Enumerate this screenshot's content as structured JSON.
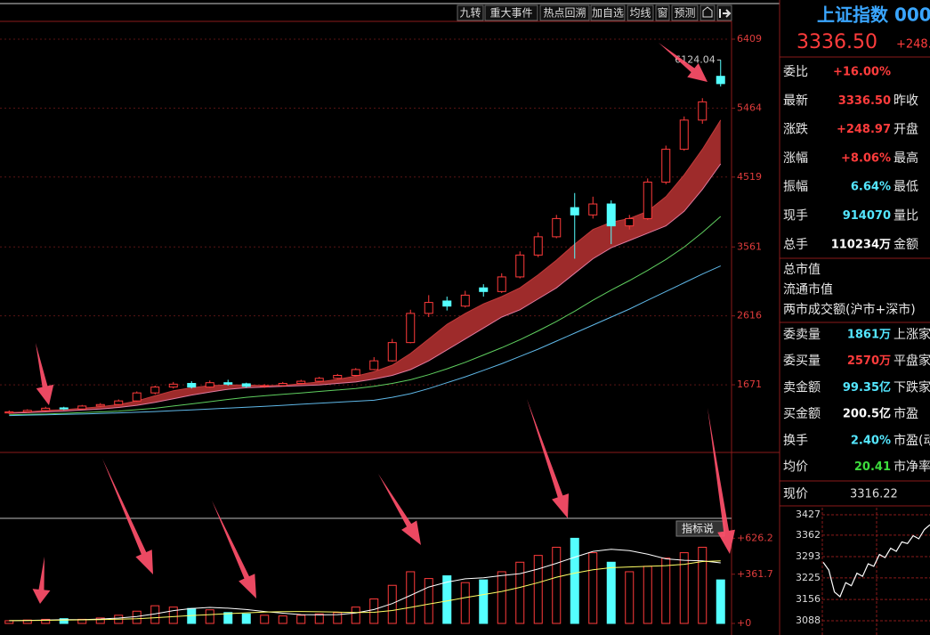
{
  "toolbar": [
    "九转",
    "重大事件",
    "热点回溯",
    "加自选",
    "均线",
    "窗",
    "预测"
  ],
  "chart_data": [
    {
      "type": "candlestick",
      "open": [
        1285,
        1300,
        1320,
        1355,
        1340,
        1380,
        1400,
        1450,
        1560,
        1640,
        1690,
        1640,
        1700,
        1685,
        1650,
        1660,
        1690,
        1720,
        1760,
        1800,
        1880,
        2000,
        2250,
        2650,
        2820,
        2750,
        3000,
        2950,
        3150,
        3450,
        3700,
        4100,
        4000,
        4150,
        3850,
        3950,
        4450,
        4900,
        5300,
        5900
      ],
      "high": [
        1320,
        1335,
        1370,
        1370,
        1395,
        1420,
        1470,
        1580,
        1660,
        1710,
        1720,
        1730,
        1740,
        1700,
        1680,
        1710,
        1740,
        1780,
        1820,
        1900,
        2050,
        2300,
        2700,
        2900,
        2880,
        2960,
        3050,
        3200,
        3500,
        3760,
        4000,
        4300,
        4250,
        4200,
        4000,
        4500,
        4950,
        5350,
        5600,
        6124.04
      ],
      "low": [
        1270,
        1290,
        1310,
        1325,
        1330,
        1365,
        1390,
        1440,
        1540,
        1620,
        1620,
        1630,
        1660,
        1630,
        1630,
        1650,
        1680,
        1710,
        1750,
        1790,
        1870,
        1990,
        2240,
        2600,
        2690,
        2730,
        2880,
        2930,
        3130,
        3420,
        3680,
        3400,
        3950,
        3600,
        3800,
        3930,
        4420,
        4880,
        5250,
        5760
      ],
      "close": [
        1300,
        1320,
        1350,
        1340,
        1380,
        1400,
        1450,
        1560,
        1640,
        1680,
        1640,
        1700,
        1680,
        1650,
        1660,
        1690,
        1720,
        1760,
        1800,
        1880,
        2000,
        2250,
        2650,
        2800,
        2750,
        2900,
        2950,
        3150,
        3450,
        3700,
        3950,
        4000,
        4150,
        3850,
        3950,
        4450,
        4900,
        5300,
        5550,
        5800
      ],
      "up_color": "#ff3b3b",
      "down_color": "#54ffff",
      "lines": [
        {
          "color": "#c23a3a",
          "values": [
            1290,
            1300,
            1320,
            1330,
            1350,
            1370,
            1400,
            1450,
            1520,
            1590,
            1630,
            1660,
            1670,
            1670,
            1660,
            1665,
            1685,
            1710,
            1745,
            1790,
            1850,
            1940,
            2100,
            2300,
            2500,
            2650,
            2780,
            2880,
            3000,
            3180,
            3380,
            3600,
            3800,
            3900,
            3950,
            4050,
            4250,
            4550,
            4900,
            5300
          ]
        },
        {
          "color": "#e07aa0",
          "values": [
            1280,
            1290,
            1300,
            1310,
            1325,
            1340,
            1360,
            1390,
            1430,
            1480,
            1530,
            1570,
            1610,
            1630,
            1640,
            1650,
            1660,
            1670,
            1690,
            1710,
            1750,
            1800,
            1880,
            2000,
            2150,
            2300,
            2450,
            2600,
            2700,
            2850,
            3000,
            3200,
            3400,
            3550,
            3650,
            3750,
            3850,
            4050,
            4350,
            4700
          ]
        },
        {
          "color": "#5fcf5f",
          "values": [
            1260,
            1265,
            1270,
            1280,
            1290,
            1300,
            1310,
            1330,
            1350,
            1380,
            1410,
            1440,
            1470,
            1500,
            1520,
            1540,
            1560,
            1580,
            1600,
            1620,
            1650,
            1690,
            1740,
            1810,
            1890,
            1980,
            2080,
            2180,
            2290,
            2410,
            2540,
            2680,
            2830,
            2970,
            3100,
            3240,
            3390,
            3560,
            3760,
            3980
          ]
        },
        {
          "color": "#5fb8e8",
          "values": [
            1250,
            1255,
            1260,
            1265,
            1270,
            1278,
            1286,
            1295,
            1305,
            1316,
            1328,
            1340,
            1352,
            1364,
            1376,
            1390,
            1404,
            1418,
            1432,
            1446,
            1460,
            1500,
            1550,
            1620,
            1700,
            1780,
            1870,
            1960,
            2060,
            2160,
            2270,
            2380,
            2490,
            2600,
            2710,
            2830,
            2950,
            3070,
            3190,
            3300
          ]
        }
      ],
      "band_color": "#9e2b2b",
      "ylim": [
        744,
        6641
      ],
      "yticks": [
        1671,
        2616,
        3561,
        4519,
        5464,
        6409
      ],
      "grid": true
    },
    {
      "type": "bar",
      "button": "指标说",
      "values": [
        20,
        25,
        30,
        35,
        30,
        40,
        60,
        90,
        130,
        120,
        110,
        100,
        80,
        70,
        60,
        55,
        60,
        70,
        80,
        120,
        180,
        280,
        380,
        330,
        350,
        300,
        320,
        380,
        450,
        500,
        560,
        626,
        520,
        450,
        380,
        420,
        480,
        520,
        560,
        320
      ],
      "lines": [
        {
          "color": "#ffffff",
          "values": [
            20,
            22,
            25,
            28,
            28,
            32,
            39,
            51,
            70,
            94,
            110,
            118,
            112,
            102,
            88,
            75,
            65,
            63,
            65,
            77,
            102,
            146,
            206,
            268,
            304,
            328,
            336,
            352,
            366,
            400,
            442,
            487,
            530,
            545,
            535,
            509,
            475,
            464,
            460,
            445
          ]
        },
        {
          "color": "#ffff66",
          "values": [
            20,
            21,
            23,
            25,
            26,
            28,
            31,
            35,
            42,
            50,
            58,
            65,
            72,
            78,
            83,
            87,
            88,
            86,
            83,
            80,
            82,
            95,
            118,
            142,
            165,
            190,
            212,
            235,
            265,
            300,
            340,
            370,
            395,
            410,
            415,
            420,
            425,
            435,
            455,
            460
          ]
        }
      ],
      "ylim": [
        0,
        753
      ],
      "yticks": [
        {
          "value": 0,
          "label": "+0"
        },
        {
          "value": 361.7,
          "label": "+361.7"
        },
        {
          "value": 626.2,
          "label": "+626.2"
        }
      ]
    },
    {
      "type": "line",
      "label": "现价",
      "value_text": "3316.22",
      "color": "#ffffff",
      "values": [
        3275,
        3250,
        3180,
        3165,
        3210,
        3200,
        3240,
        3230,
        3270,
        3262,
        3300,
        3290,
        3320,
        3310,
        3340,
        3335,
        3360,
        3350,
        3380,
        3395
      ],
      "ylim": [
        3088,
        3427
      ],
      "yticks": [
        3088,
        3156,
        3225,
        3293,
        3362,
        3427
      ],
      "grid": true
    }
  ],
  "quote": {
    "name": "上证指数 000",
    "price": "3336.50",
    "change": "+248.",
    "rows": [
      {
        "label": "委比",
        "value": "+16.00%",
        "color": "#ff3c3c"
      },
      {
        "label": "最新",
        "value": "3336.50",
        "color": "#ff3c3c",
        "right": "昨收"
      },
      {
        "label": "涨跌",
        "value": "+248.97",
        "color": "#ff3c3c",
        "right": "开盘"
      },
      {
        "label": "涨幅",
        "value": "+8.06%",
        "color": "#ff3c3c",
        "right": "最高"
      },
      {
        "label": "振幅",
        "value": "6.64%",
        "color": "#54e6ff",
        "right": "最低"
      },
      {
        "label": "现手",
        "value": "914070",
        "color": "#54e6ff",
        "right": "量比"
      },
      {
        "label": "总手",
        "value": "110234万",
        "color": "#ffffff",
        "right": "金额"
      }
    ],
    "info": [
      "总市值",
      "流通市值",
      "两市成交额(沪市+深市)"
    ],
    "rows2": [
      {
        "label": "委卖量",
        "value": "1861万",
        "color": "#54e6ff",
        "right": "上涨家"
      },
      {
        "label": "委买量",
        "value": "2570万",
        "color": "#ff3c3c",
        "right": "平盘家"
      },
      {
        "label": "卖金额",
        "value": "99.35亿",
        "color": "#54e6ff",
        "right": "下跌家"
      },
      {
        "label": "买金额",
        "value": "200.5亿",
        "color": "#ffffff",
        "right": "市盈"
      },
      {
        "label": "换手",
        "value": "2.40%",
        "color": "#54e6ff",
        "right": "市盈(动)"
      },
      {
        "label": "均价",
        "value": "20.41",
        "color": "#3ddc3d",
        "right": "市净率"
      }
    ]
  }
}
